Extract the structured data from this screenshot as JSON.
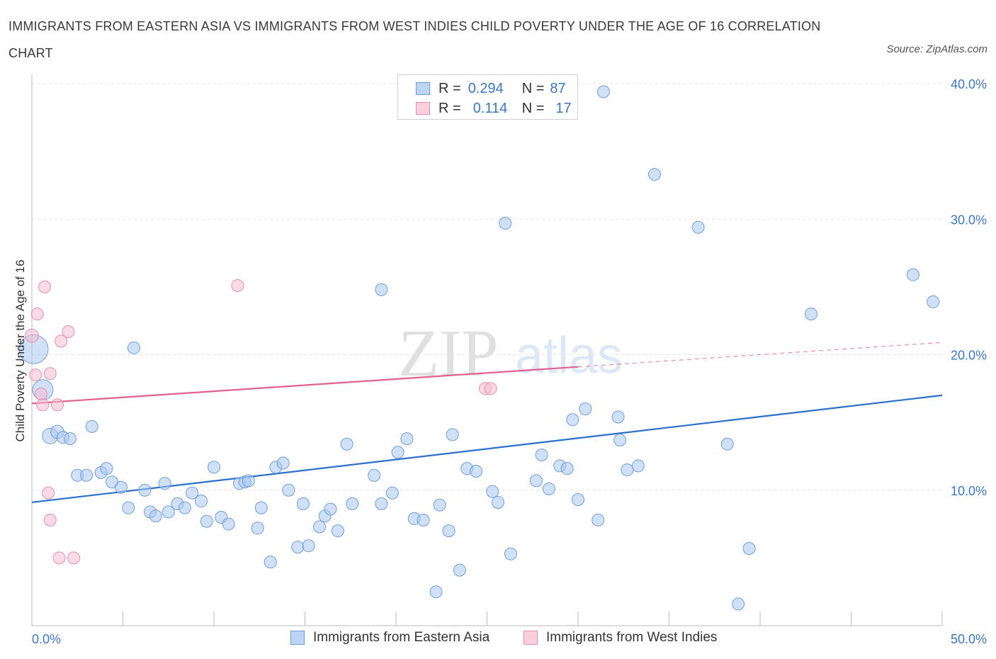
{
  "title": "IMMIGRANTS FROM EASTERN ASIA VS IMMIGRANTS FROM WEST INDIES CHILD POVERTY UNDER THE AGE OF 16 CORRELATION CHART",
  "source": "Source: ZipAtlas.com",
  "watermark": {
    "zip": "ZIP",
    "atlas": "atlas"
  },
  "legend_top": [
    {
      "r_label": "R =",
      "r_value": "0.294",
      "n_label": "N =",
      "n_value": "87"
    },
    {
      "r_label": "R =",
      "r_value": "0.114",
      "n_label": "N =",
      "n_value": "17"
    }
  ],
  "colors": {
    "eastern_asia_fill": "#a9c8f0",
    "eastern_asia_stroke": "#6f9fd8",
    "eastern_asia_line": "#2a6fcc",
    "west_indies_fill": "#f5bccd",
    "west_indies_stroke": "#e88fab",
    "west_indies_line": "#e0608e",
    "tick_label": "#3a78c9",
    "grid": "#e4e4e4"
  },
  "chart_data": {
    "type": "scatter",
    "title": "IMMIGRANTS FROM EASTERN ASIA VS IMMIGRANTS FROM WEST INDIES CHILD POVERTY UNDER THE AGE OF 16 CORRELATION CHART",
    "xlabel": "",
    "ylabel": "Child Poverty Under the Age of 16",
    "xlim": [
      0,
      50
    ],
    "ylim": [
      0,
      40
    ],
    "x_tick_labels": [
      "0.0%",
      "50.0%"
    ],
    "y_ticks": [
      10,
      20,
      30,
      40
    ],
    "y_tick_labels": [
      "10.0%",
      "20.0%",
      "30.0%",
      "40.0%"
    ],
    "grid": true,
    "legend_position": "bottom",
    "series": [
      {
        "name": "Immigrants from Eastern Asia",
        "R": 0.294,
        "N": 87,
        "trend": {
          "x": [
            0,
            50
          ],
          "y": [
            9.1,
            17.0
          ],
          "style": "solid"
        },
        "points": [
          [
            0.1,
            20.4,
            2.4
          ],
          [
            0.6,
            17.4,
            1.7
          ],
          [
            1.0,
            14.0,
            1.3
          ],
          [
            1.4,
            14.3,
            1.1
          ],
          [
            1.7,
            13.9,
            1.0
          ],
          [
            2.1,
            13.8,
            1.0
          ],
          [
            2.5,
            11.1,
            1.0
          ],
          [
            3.0,
            11.1,
            1.0
          ],
          [
            3.3,
            14.7,
            1.0
          ],
          [
            3.8,
            11.3,
            1.0
          ],
          [
            4.1,
            11.6,
            1.0
          ],
          [
            4.4,
            10.6,
            1.0
          ],
          [
            4.9,
            10.2,
            1.0
          ],
          [
            5.3,
            8.7,
            1.0
          ],
          [
            5.6,
            20.5,
            1.0
          ],
          [
            6.2,
            10.0,
            1.0
          ],
          [
            6.5,
            8.4,
            1.0
          ],
          [
            6.8,
            8.1,
            1.0
          ],
          [
            7.3,
            10.5,
            1.0
          ],
          [
            7.5,
            8.4,
            1.0
          ],
          [
            8.0,
            9.0,
            1.0
          ],
          [
            8.4,
            8.7,
            1.0
          ],
          [
            8.8,
            9.8,
            1.0
          ],
          [
            9.3,
            9.2,
            1.0
          ],
          [
            9.6,
            7.7,
            1.0
          ],
          [
            10.0,
            11.7,
            1.0
          ],
          [
            10.4,
            8.0,
            1.0
          ],
          [
            10.8,
            7.5,
            1.0
          ],
          [
            11.4,
            10.5,
            1.0
          ],
          [
            11.7,
            10.6,
            1.0
          ],
          [
            11.9,
            10.7,
            1.0
          ],
          [
            12.4,
            7.2,
            1.0
          ],
          [
            12.6,
            8.7,
            1.0
          ],
          [
            13.1,
            4.7,
            1.0
          ],
          [
            13.4,
            11.7,
            1.0
          ],
          [
            13.8,
            12.0,
            1.0
          ],
          [
            14.1,
            10.0,
            1.0
          ],
          [
            14.6,
            5.8,
            1.0
          ],
          [
            14.9,
            9.0,
            1.0
          ],
          [
            15.2,
            5.9,
            1.0
          ],
          [
            15.8,
            7.3,
            1.0
          ],
          [
            16.1,
            8.1,
            1.0
          ],
          [
            16.4,
            8.6,
            1.0
          ],
          [
            16.8,
            7.0,
            1.0
          ],
          [
            17.3,
            13.4,
            1.0
          ],
          [
            17.6,
            9.0,
            1.0
          ],
          [
            18.8,
            11.1,
            1.0
          ],
          [
            19.2,
            9.0,
            1.0
          ],
          [
            19.2,
            24.8,
            1.0
          ],
          [
            19.8,
            9.8,
            1.0
          ],
          [
            20.1,
            12.8,
            1.0
          ],
          [
            20.6,
            13.8,
            1.0
          ],
          [
            21.0,
            7.9,
            1.0
          ],
          [
            21.5,
            7.8,
            1.0
          ],
          [
            22.2,
            2.5,
            1.0
          ],
          [
            22.4,
            8.9,
            1.0
          ],
          [
            22.9,
            7.0,
            1.0
          ],
          [
            23.1,
            14.1,
            1.0
          ],
          [
            23.5,
            4.1,
            1.0
          ],
          [
            23.9,
            11.6,
            1.0
          ],
          [
            24.4,
            11.4,
            1.0
          ],
          [
            25.3,
            9.9,
            1.0
          ],
          [
            25.6,
            9.1,
            1.0
          ],
          [
            26.0,
            29.7,
            1.0
          ],
          [
            26.3,
            5.3,
            1.0
          ],
          [
            27.7,
            10.7,
            1.0
          ],
          [
            28.0,
            12.6,
            1.0
          ],
          [
            28.4,
            10.1,
            1.0
          ],
          [
            29.0,
            11.8,
            1.0
          ],
          [
            29.4,
            11.6,
            1.0
          ],
          [
            29.7,
            15.2,
            1.0
          ],
          [
            30.0,
            9.3,
            1.0
          ],
          [
            30.4,
            16.0,
            1.0
          ],
          [
            31.1,
            7.8,
            1.0
          ],
          [
            31.4,
            39.4,
            1.0
          ],
          [
            32.2,
            15.4,
            1.0
          ],
          [
            32.3,
            13.7,
            1.0
          ],
          [
            32.7,
            11.5,
            1.0
          ],
          [
            33.3,
            11.8,
            1.0
          ],
          [
            34.2,
            33.3,
            1.0
          ],
          [
            36.6,
            29.4,
            1.0
          ],
          [
            38.2,
            13.4,
            1.0
          ],
          [
            38.8,
            1.6,
            1.0
          ],
          [
            39.4,
            5.7,
            1.0
          ],
          [
            42.8,
            23.0,
            1.0
          ],
          [
            48.4,
            25.9,
            1.0
          ],
          [
            49.5,
            23.9,
            1.0
          ]
        ]
      },
      {
        "name": "Immigrants from West Indies",
        "R": 0.114,
        "N": 17,
        "trend": {
          "x": [
            0,
            30
          ],
          "y": [
            16.4,
            19.1
          ],
          "style": "solid",
          "extension": {
            "x": [
              30,
              50
            ],
            "y": [
              19.1,
              20.9
            ],
            "style": "dashed"
          }
        },
        "points": [
          [
            0.0,
            21.4,
            1.1
          ],
          [
            0.2,
            18.5,
            1.0
          ],
          [
            0.3,
            23.0,
            1.0
          ],
          [
            0.5,
            17.1,
            1.0
          ],
          [
            0.6,
            16.3,
            1.0
          ],
          [
            0.7,
            25.0,
            1.0
          ],
          [
            0.9,
            9.8,
            1.0
          ],
          [
            1.0,
            7.8,
            1.0
          ],
          [
            1.0,
            18.6,
            1.0
          ],
          [
            1.4,
            16.3,
            1.0
          ],
          [
            1.5,
            5.0,
            1.0
          ],
          [
            1.6,
            21.0,
            1.0
          ],
          [
            2.0,
            21.7,
            1.0
          ],
          [
            2.3,
            5.0,
            1.0
          ],
          [
            11.3,
            25.1,
            1.0
          ],
          [
            24.9,
            17.5,
            1.0
          ],
          [
            25.2,
            17.5,
            1.0
          ]
        ]
      }
    ]
  },
  "legend_bottom": [
    {
      "label": "Immigrants from Eastern Asia"
    },
    {
      "label": "Immigrants from West Indies"
    }
  ]
}
